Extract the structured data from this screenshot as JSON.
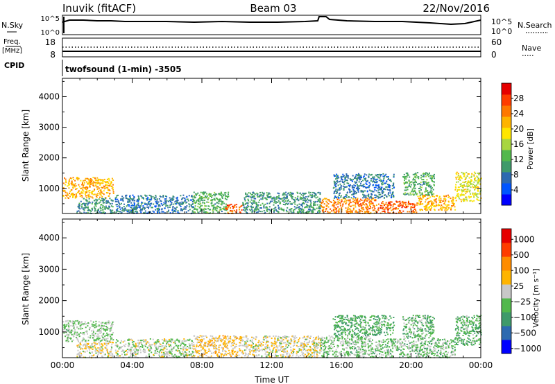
{
  "header": {
    "station": "Inuvik (fitACF)",
    "beam": "Beam 03",
    "date": "22/Nov/2016"
  },
  "sky_panel": {
    "left_label": "N.Sky",
    "right_label": "N.Search",
    "left_ticks": [
      "10^5",
      "10^0"
    ],
    "right_ticks": [
      "10^5",
      "10^0"
    ]
  },
  "freq_panel": {
    "left_label_top": "Freq.",
    "left_label_unit": "[MHz]",
    "left_ticks": [
      "18",
      "8"
    ],
    "right_ticks": [
      "60",
      "0"
    ],
    "right_label": "Nave"
  },
  "cpid": {
    "label": "CPID",
    "program": "twofsound (1-min) -3505"
  },
  "chart_data": [
    {
      "type": "heatmap",
      "name": "power",
      "ylabel": "Slant Range [km]",
      "ylim": [
        180,
        4600
      ],
      "yticks": [
        "1000",
        "2000",
        "3000",
        "4000"
      ],
      "xlim": [
        0,
        24
      ],
      "xticks": [
        "00:00",
        "04:00",
        "08:00",
        "12:00",
        "16:00",
        "20:00",
        "00:00"
      ],
      "colorbar": {
        "label": "Power [dB]",
        "ticks": [
          "4",
          "8",
          "12",
          "16",
          "20",
          "24",
          "28"
        ],
        "range": [
          0,
          32
        ],
        "colors": [
          "#0000ff",
          "#0055ff",
          "#2d6ab0",
          "#3f9a6a",
          "#52b84c",
          "#a8d640",
          "#ffe600",
          "#ffb400",
          "#ff7800",
          "#ff3c00",
          "#e60000"
        ]
      },
      "regions": [
        {
          "t0": 0.0,
          "t1": 2.9,
          "r0": 700,
          "r1": 1380,
          "value": 22
        },
        {
          "t0": 0.8,
          "t1": 2.9,
          "r0": 200,
          "r1": 700,
          "value": 10
        },
        {
          "t0": 3.0,
          "t1": 7.5,
          "r0": 200,
          "r1": 800,
          "value": 8
        },
        {
          "t0": 7.5,
          "t1": 9.5,
          "r0": 200,
          "r1": 900,
          "value": 12
        },
        {
          "t0": 9.3,
          "t1": 10.3,
          "r0": 200,
          "r1": 500,
          "value": 26
        },
        {
          "t0": 10.3,
          "t1": 14.8,
          "r0": 200,
          "r1": 900,
          "value": 10
        },
        {
          "t0": 14.8,
          "t1": 18.0,
          "r0": 200,
          "r1": 700,
          "value": 24
        },
        {
          "t0": 15.5,
          "t1": 19.0,
          "r0": 700,
          "r1": 1500,
          "value": 8
        },
        {
          "t0": 18.0,
          "t1": 20.3,
          "r0": 200,
          "r1": 600,
          "value": 26
        },
        {
          "t0": 20.3,
          "t1": 22.5,
          "r0": 300,
          "r1": 800,
          "value": 22
        },
        {
          "t0": 19.5,
          "t1": 21.3,
          "r0": 800,
          "r1": 1550,
          "value": 12
        },
        {
          "t0": 22.5,
          "t1": 24.0,
          "r0": 600,
          "r1": 1550,
          "value": 18
        }
      ]
    },
    {
      "type": "heatmap",
      "name": "velocity",
      "ylabel": "Slant Range [km]",
      "ylim": [
        180,
        4600
      ],
      "yticks": [
        "1000",
        "2000",
        "3000",
        "4000"
      ],
      "xlim": [
        0,
        24
      ],
      "xticks": [
        "00:00",
        "04:00",
        "08:00",
        "12:00",
        "16:00",
        "20:00",
        "00:00"
      ],
      "xlabel": "Time UT",
      "colorbar": {
        "label": "Velocity [m s⁻¹]",
        "ticks": [
          "1000",
          "500",
          "100",
          "25",
          "−25",
          "−100",
          "−500",
          "−1000"
        ],
        "range": [
          -1300,
          1300
        ],
        "colors": [
          "#0000ff",
          "#2d6ab0",
          "#3f9a6a",
          "#52b84c",
          "#c8c8c8",
          "#ffb400",
          "#ff8c00",
          "#ff3c00",
          "#e60000"
        ]
      },
      "regions": [
        {
          "t0": 0.0,
          "t1": 2.9,
          "r0": 700,
          "r1": 1380,
          "value": -150
        },
        {
          "t0": 0.8,
          "t1": 2.9,
          "r0": 200,
          "r1": 700,
          "value": 80
        },
        {
          "t0": 3.0,
          "t1": 7.5,
          "r0": 200,
          "r1": 800,
          "value": -60
        },
        {
          "t0": 7.5,
          "t1": 10.3,
          "r0": 200,
          "r1": 900,
          "value": 200
        },
        {
          "t0": 10.3,
          "t1": 14.8,
          "r0": 200,
          "r1": 900,
          "value": 60
        },
        {
          "t0": 14.8,
          "t1": 18.0,
          "r0": 200,
          "r1": 900,
          "value": -200
        },
        {
          "t0": 15.5,
          "t1": 19.0,
          "r0": 900,
          "r1": 1550,
          "value": -400
        },
        {
          "t0": 18.0,
          "t1": 22.5,
          "r0": 200,
          "r1": 800,
          "value": -250
        },
        {
          "t0": 19.5,
          "t1": 21.3,
          "r0": 800,
          "r1": 1550,
          "value": -300
        },
        {
          "t0": 22.5,
          "t1": 24.0,
          "r0": 600,
          "r1": 1550,
          "value": -350
        }
      ]
    }
  ]
}
